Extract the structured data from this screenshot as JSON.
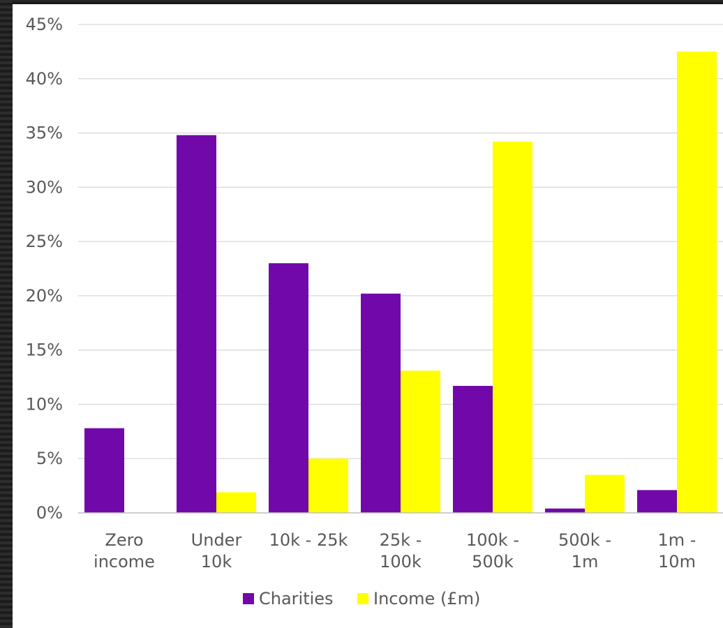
{
  "chart_data": {
    "type": "bar",
    "title": "",
    "xlabel": "",
    "ylabel": "",
    "categories": [
      [
        "Zero",
        "income"
      ],
      [
        "Under",
        "10k"
      ],
      [
        "10k - 25k"
      ],
      [
        "25k -",
        "100k"
      ],
      [
        "100k -",
        "500k"
      ],
      [
        "500k -",
        "1m"
      ],
      [
        "1m -",
        "10m"
      ]
    ],
    "series": [
      {
        "name": "Charities",
        "color": "#7109AA",
        "values": [
          7.8,
          34.8,
          23.0,
          20.2,
          11.7,
          0.4,
          2.1
        ]
      },
      {
        "name": "Income (£m)",
        "color": "#FFFF00",
        "values": [
          0.0,
          1.9,
          5.0,
          13.1,
          34.2,
          3.5,
          42.5
        ]
      }
    ],
    "yticks": [
      "0%",
      "5%",
      "10%",
      "15%",
      "20%",
      "25%",
      "30%",
      "35%",
      "40%",
      "45%"
    ],
    "ylim": [
      0,
      45
    ],
    "grid": true,
    "legend_position": "bottom",
    "colors": {
      "background": "#ffffff",
      "gridline": "#d9d9d9",
      "axis_line": "#bfbfbf",
      "label_text": "#595959"
    }
  }
}
